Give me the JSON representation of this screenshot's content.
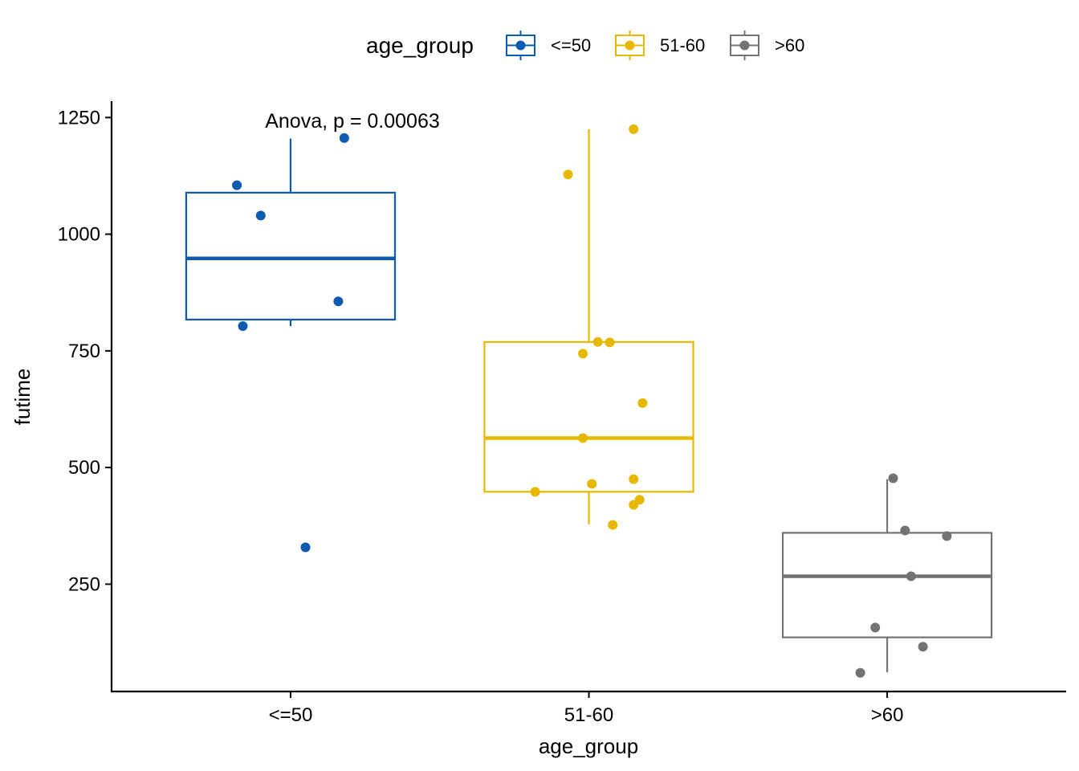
{
  "chart_data": {
    "type": "box",
    "xlabel": "age_group",
    "ylabel": "futime",
    "ylim": [
      20,
      1285
    ],
    "yticks": [
      250,
      500,
      750,
      1000,
      1250
    ],
    "grid": false,
    "legend": {
      "title": "age_group",
      "position": "top",
      "entries": [
        "<=50",
        "51-60",
        ">60"
      ]
    },
    "annotation": "Anova, p = 0.00063",
    "categories": [
      "<=50",
      "51-60",
      ">60"
    ],
    "groups": [
      {
        "label": "<=50",
        "color": "#0C5BB0",
        "box": {
          "lower_whisker": 803,
          "q1": 817,
          "median": 948,
          "q3": 1089,
          "upper_whisker": 1205
        },
        "points": [
          {
            "x_offset": -0.18,
            "y": 1105
          },
          {
            "x_offset": -0.1,
            "y": 1040
          },
          {
            "x_offset": -0.16,
            "y": 803
          },
          {
            "x_offset": 0.16,
            "y": 856
          },
          {
            "x_offset": 0.18,
            "y": 1206
          },
          {
            "x_offset": 0.05,
            "y": 329
          }
        ]
      },
      {
        "label": "51-60",
        "color": "#E7B800",
        "box": {
          "lower_whisker": 378,
          "q1": 448,
          "median": 563,
          "q3": 769,
          "upper_whisker": 1225
        },
        "points": [
          {
            "x_offset": -0.07,
            "y": 1128
          },
          {
            "x_offset": 0.15,
            "y": 1225
          },
          {
            "x_offset": 0.03,
            "y": 769
          },
          {
            "x_offset": 0.07,
            "y": 768
          },
          {
            "x_offset": -0.02,
            "y": 744
          },
          {
            "x_offset": 0.18,
            "y": 638
          },
          {
            "x_offset": -0.02,
            "y": 563
          },
          {
            "x_offset": 0.15,
            "y": 475
          },
          {
            "x_offset": 0.01,
            "y": 465
          },
          {
            "x_offset": -0.18,
            "y": 448
          },
          {
            "x_offset": 0.17,
            "y": 431
          },
          {
            "x_offset": 0.15,
            "y": 420
          },
          {
            "x_offset": 0.08,
            "y": 377
          }
        ]
      },
      {
        "label": ">60",
        "color": "#737373",
        "box": {
          "lower_whisker": 61,
          "q1": 136,
          "median": 267,
          "q3": 360,
          "upper_whisker": 475
        },
        "points": [
          {
            "x_offset": 0.02,
            "y": 477
          },
          {
            "x_offset": 0.06,
            "y": 365
          },
          {
            "x_offset": 0.2,
            "y": 353
          },
          {
            "x_offset": 0.08,
            "y": 267
          },
          {
            "x_offset": -0.04,
            "y": 157
          },
          {
            "x_offset": 0.12,
            "y": 116
          },
          {
            "x_offset": -0.09,
            "y": 60
          }
        ]
      }
    ]
  }
}
